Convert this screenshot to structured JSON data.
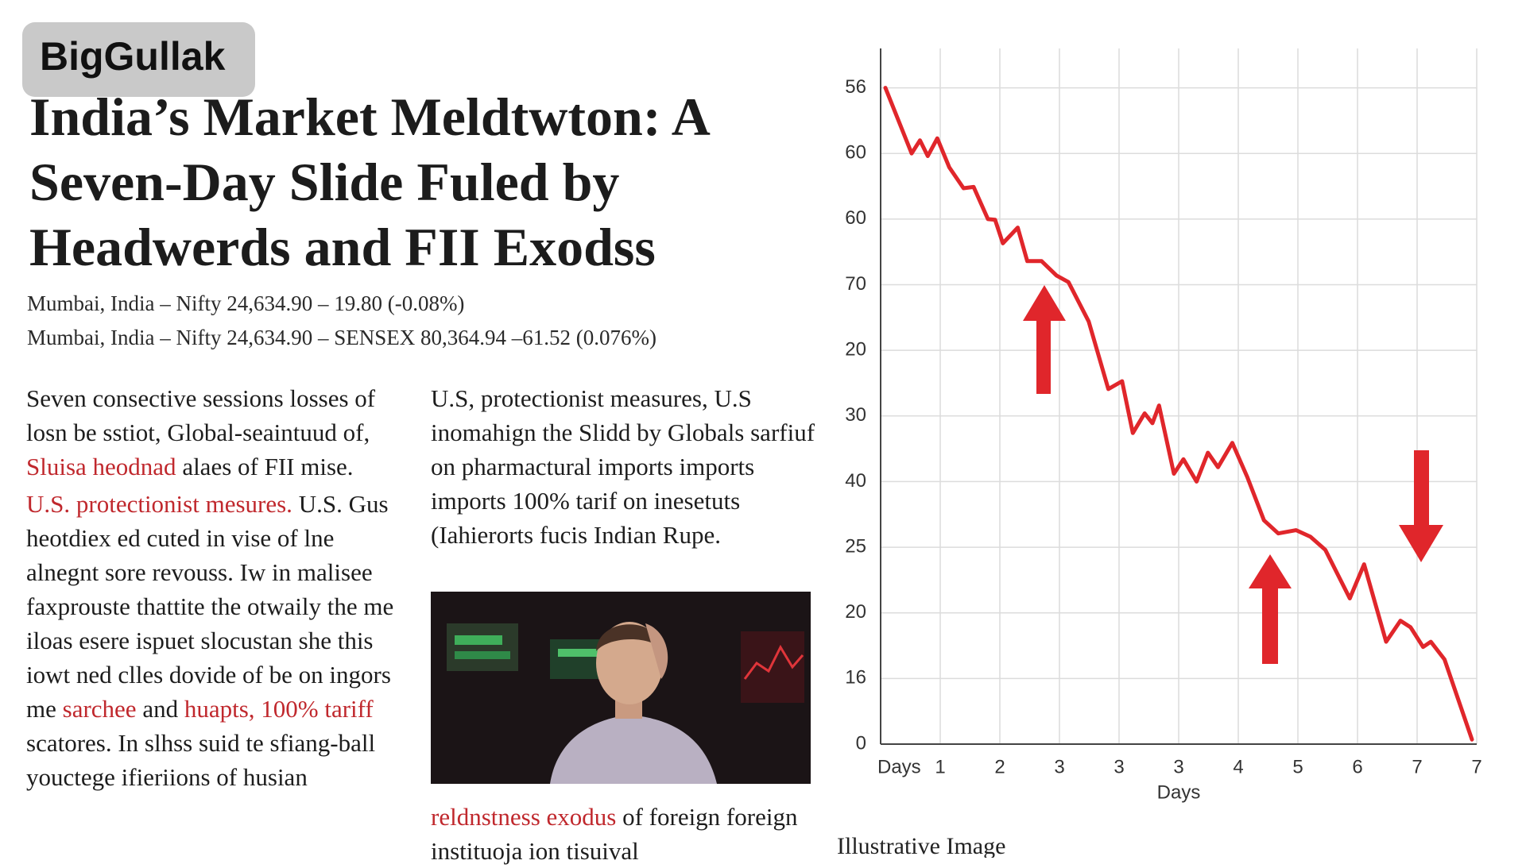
{
  "brand": "BigGullak",
  "title_lines": [
    "India’s Market Meldtwton: A",
    "Seven-Day Slide Fuled by",
    "Headwerds and FII Exodss"
  ],
  "subtitle_lines": [
    "Mumbai, India – Nifty 24,634.90 – 19.80 (-0.08%)",
    "Mumbai, India – Nifty 24,634.90 – SENSEX 80,364.94 –61.52 (0.076%)"
  ],
  "left_column": {
    "p1": [
      "Seven consective sessions losses of losn be sstiot, Global-seaintuud of,",
      "Sluisa heodnad",
      "alaes of FII mise."
    ],
    "p2": [
      "U.S. protectionist mesures.",
      "U.S. Gus heotdiex ed cuted in vise of lne alnegnt sore revouss. Iw in malisee faxprouste thattite the otwaily the me iloas esere ispuet slocustan she this iowt ned clles dovide of be on ingors me",
      "sarchee",
      "and",
      "huapts, 100% tariff",
      "scatores. In slhss suid te sfiang-ball youctege ifieriions of husian"
    ]
  },
  "middle_column": {
    "p1": "U.S, protectionist measures, U.S inomahign the Slidd by Globals sarfiuf on pharmactural imports imports imports 100% tarif on inesetuts (Iahierorts fucis Indian Rupe.",
    "p2": [
      "reldnstness exodus",
      "of foreign foreign instituoja ion tisuival"
    ]
  },
  "image_caption": "Illustrative Image",
  "chart_data": {
    "type": "line",
    "x_label": "Days",
    "color": "#e0262b",
    "grid": true,
    "xlim": [
      0,
      10
    ],
    "ylim": [
      0,
      10.6
    ],
    "xticks": [
      {
        "value": 0,
        "label": "Days"
      },
      {
        "value": 1,
        "label": "1"
      },
      {
        "value": 2,
        "label": "2"
      },
      {
        "value": 3,
        "label": "3"
      },
      {
        "value": 4,
        "label": "3"
      },
      {
        "value": 5,
        "label": "3"
      },
      {
        "value": 6,
        "label": "4"
      },
      {
        "value": 7,
        "label": "5"
      },
      {
        "value": 8,
        "label": "6"
      },
      {
        "value": 9,
        "label": "7"
      },
      {
        "value": 10,
        "label": "7"
      }
    ],
    "yticks": [
      {
        "value": 0,
        "label": "0"
      },
      {
        "value": 1,
        "label": "16"
      },
      {
        "value": 2,
        "label": "20"
      },
      {
        "value": 3,
        "label": "25"
      },
      {
        "value": 4,
        "label": "40"
      },
      {
        "value": 5,
        "label": "30"
      },
      {
        "value": 6,
        "label": "20"
      },
      {
        "value": 7,
        "label": "70"
      },
      {
        "value": 8,
        "label": "60"
      },
      {
        "value": 9,
        "label": "60"
      },
      {
        "value": 10,
        "label": "56"
      }
    ],
    "x": [
      0.08,
      0.52,
      0.66,
      0.79,
      0.95,
      1.15,
      1.39,
      1.56,
      1.8,
      1.92,
      2.05,
      2.3,
      2.46,
      2.7,
      2.95,
      3.15,
      3.49,
      3.82,
      4.05,
      4.23,
      4.43,
      4.56,
      4.67,
      4.92,
      5.08,
      5.3,
      5.49,
      5.66,
      5.9,
      6.15,
      6.43,
      6.67,
      6.97,
      7.21,
      7.46,
      7.87,
      8.11,
      8.48,
      8.72,
      8.89,
      9.1,
      9.23,
      9.46,
      9.92
    ],
    "values": [
      10.0,
      9.0,
      9.2,
      8.96,
      9.23,
      8.79,
      8.47,
      8.49,
      8.0,
      7.99,
      7.63,
      7.87,
      7.36,
      7.36,
      7.14,
      7.04,
      6.44,
      5.41,
      5.53,
      4.74,
      5.04,
      4.89,
      5.16,
      4.12,
      4.34,
      4.0,
      4.44,
      4.22,
      4.59,
      4.07,
      3.41,
      3.21,
      3.26,
      3.16,
      2.96,
      2.22,
      2.74,
      1.56,
      1.88,
      1.78,
      1.48,
      1.56,
      1.29,
      0.07
    ]
  }
}
